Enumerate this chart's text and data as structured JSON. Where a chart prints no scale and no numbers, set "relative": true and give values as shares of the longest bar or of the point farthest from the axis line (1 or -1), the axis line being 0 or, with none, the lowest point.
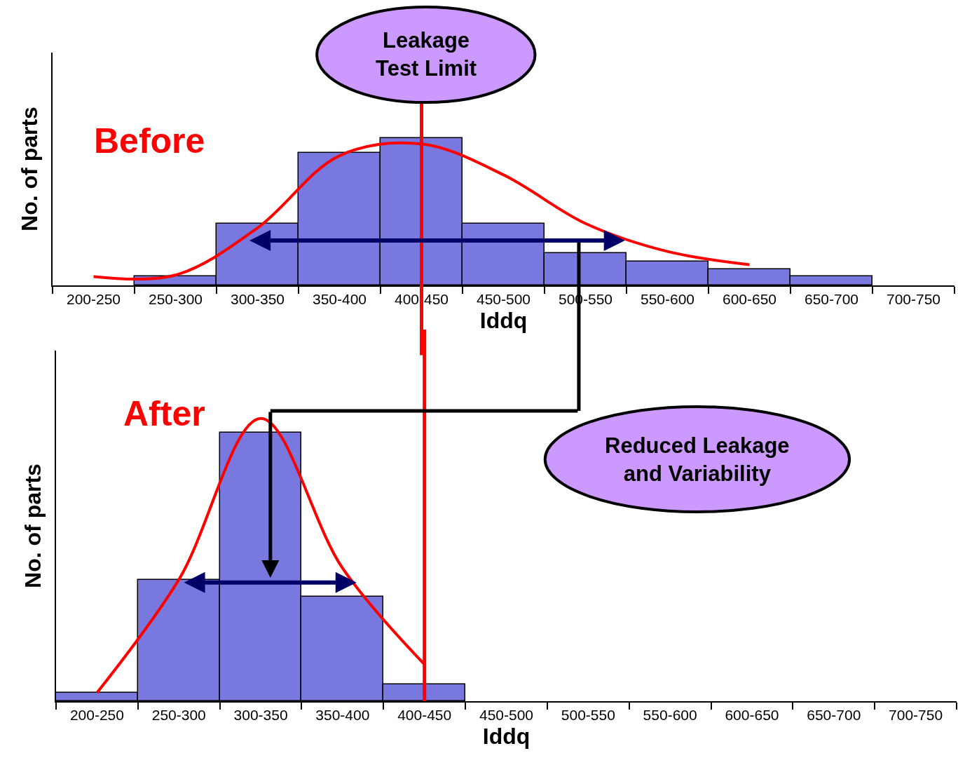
{
  "chart_data": [
    {
      "type": "bar",
      "relative": true,
      "xlabel": "Iddq",
      "ylabel": "No. of parts",
      "tick_labels": "x",
      "legend": false,
      "grid": false,
      "marker": "none",
      "categories": [
        "200-250",
        "250-300",
        "300-350",
        "350-400",
        "400-450",
        "450-500",
        "500-550",
        "550-600",
        "600-650",
        "650-700",
        "700-750"
      ],
      "series": [
        {
          "color": "#7878de",
          "values": [
            null,
            0.06,
            0.42,
            0.9,
            1.0,
            0.42,
            0.22,
            0.16,
            0.11,
            0.06,
            null
          ]
        },
        {
          "type": "line",
          "color": "#ff0000",
          "values": [
            0.06,
            0.07,
            0.39,
            0.88,
            0.96,
            0.75,
            0.42,
            0.23,
            0.14,
            null,
            null
          ]
        }
      ],
      "ref_lines": [
        {
          "axis": "x",
          "value": "400-450",
          "label": "Leakage Test Limit",
          "color": "#ff0000"
        }
      ],
      "annotations": [
        "Before"
      ]
    },
    {
      "type": "bar",
      "relative": true,
      "xlabel": "Iddq",
      "ylabel": "No. of parts",
      "tick_labels": "x",
      "legend": false,
      "grid": false,
      "marker": "none",
      "categories": [
        "200-250",
        "250-300",
        "300-350",
        "350-400",
        "400-450",
        "450-500",
        "500-550",
        "550-600",
        "600-650",
        "650-700",
        "700-750"
      ],
      "series": [
        {
          "color": "#7878de",
          "values": [
            0.03,
            0.43,
            0.95,
            0.37,
            0.06,
            null,
            null,
            null,
            null,
            null,
            null
          ]
        },
        {
          "type": "line",
          "color": "#ff0000",
          "values": [
            0.03,
            0.43,
            1.0,
            0.47,
            0.13,
            null,
            null,
            null,
            null,
            null,
            null
          ]
        }
      ],
      "ref_lines": [
        {
          "axis": "x",
          "value": "400-450",
          "color": "#ff0000"
        }
      ],
      "annotations": [
        "After",
        "Reduced Leakage and Variability"
      ]
    }
  ]
}
